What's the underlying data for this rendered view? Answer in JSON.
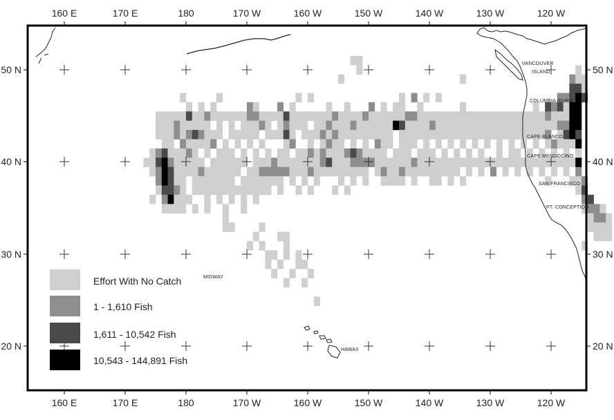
{
  "colors": {
    "no_catch": "#cfcfcf",
    "low": "#8e8e8e",
    "mid": "#4a4a4a",
    "high": "#000000",
    "frame": "#000000",
    "land": "#ffffff",
    "coast": "#222222"
  },
  "axes": {
    "top": [
      "160 E",
      "170 E",
      "180",
      "170 W",
      "160 W",
      "150 W",
      "140 W",
      "130 W",
      "120 W"
    ],
    "bottom": [
      "160 E",
      "170 E",
      "180",
      "170 W",
      "160 W",
      "150 W",
      "140 W",
      "130 W",
      "120 W"
    ],
    "left": [
      "50 N",
      "40 N",
      "30 N",
      "20 N"
    ],
    "right": [
      "50 N",
      "40 N",
      "30 N",
      "20 N"
    ]
  },
  "places": [
    {
      "id": "vancouver",
      "text": "VANCOUVER"
    },
    {
      "id": "island",
      "text": "ISLAND"
    },
    {
      "id": "columbia",
      "text": "COLUMBIA RIVER"
    },
    {
      "id": "blanco",
      "text": "CAPE BLANCO"
    },
    {
      "id": "mendocino",
      "text": "CAPE MENDOCINO"
    },
    {
      "id": "sanfrancisco",
      "text": "SAN FRANCISCO"
    },
    {
      "id": "conception",
      "text": "PT. CONCEPTION"
    },
    {
      "id": "midway",
      "text": "MIDWAY"
    },
    {
      "id": "hawaii",
      "text": "HAWAII"
    }
  ],
  "legend": [
    {
      "key": "no_catch",
      "label": "Effort With No Catch"
    },
    {
      "key": "low",
      "label": "1 - 1,610 Fish"
    },
    {
      "key": "mid",
      "label": "1,611 - 10,542 Fish"
    },
    {
      "key": "high",
      "label": "10,543 - 144,891 Fish"
    }
  ],
  "grid": {
    "lon0": 160,
    "lat0": 50,
    "deg_per_cell": 1,
    "rows": [
      {
        "lat": 51,
        "c": "1 48:1 49:1"
      },
      {
        "lat": 50,
        "c": "1 49:1 85:1"
      },
      {
        "lat": 49,
        "c": "1 46:1 66:1 84:2 85:1 86:1"
      },
      {
        "lat": 48,
        "c": "1 84:3 85:3 86:1"
      },
      {
        "lat": 47,
        "c": "1 20:1 26:1 39:1 41:1 56:1 58:2 60:1 62:1 82:2 83:2 84:3 85:4 86:3"
      },
      {
        "lat": 46,
        "c": "1 21:1 23:1 25:1 31:2 32:1 36:2 38:1 44:1 47:1 51:2 53:1 55:1 56:1 59:1 66:1 78:1 80:3 81:2 82:3 83:1 84:4 85:4"
      },
      {
        "lat": 45,
        "c": "1 16:9 17:9 18:9 19:9 20:9 21:3 22:1 23:1 24:2 25:1 26:1 27:1 28:1 29:1 30:1 31:2 32:2 33:1 34:1 35:1 36:1 37:3 38:1 39:1 40:1 41:1 42:1 43:1 44:1 45:2 46:1 47:1 48:1 49:1 50:2 51:1 52:1 53:1 54:1 55:1 56:1 57:2 58:2 59:1 60:1 61:1 62:1 63:1 64:1 65:1 66:1 67:1 68:1 69:1 70:1 71:1 72:1 73:1 74:1 75:1 76:1 77:1 78:1 79:1 80:2 81:1 82:1 83:1 84:4 85:4"
      },
      {
        "lat": 44,
        "c": "1 16:9 17:1 18:1 19:2 20:1 21:1 22:1 23:1 24:1 26:1 28:1 30:1 31:1 32:1 33:2 34:1 36:1 37:2 38:1 39:1 40:1 42:1 43:1 44:2 45:1 46:1 47:1 48:2 49:1 50:1 51:1 52:1 53:1 54:1 55:4 56:3 57:1 58:1 59:1 60:1 61:2 62:1 63:1 64:1 65:1 66:1 67:1 68:1 69:1 70:1 71:1 72:1 73:1 74:1 75:1 76:1 77:1 78:1 79:1 80:1 81:1 82:2 83:2 84:4 85:4"
      },
      {
        "lat": 43,
        "c": "1 16:1 17:1 18:1 19:2 20:1 21:2 22:3 23:2 24:1 25:1 26:1 28:1 29:1 30:1 31:1 32:1 34:1 35:1 36:1 37:3 38:1 40:1 41:1 42:1 43:2 44:1 45:2 46:1 47:1 48:1 49:1 50:1 51:1 52:1 53:1 54:1 56:1 57:1 58:1 59:1 60:1 61:1 62:1 63:1 64:1 65:1 66:1 67:1 68:1 69:1 70:1 71:1 72:1 73:1 74:1 75:1 76:1 77:1 78:1 79:1 80:2 82:1 83:3 84:4 85:3"
      },
      {
        "lat": 42,
        "c": "1 17:1 18:1 20:2 21:1 22:1 23:1 24:1 25:2 27:1 29:1 31:1 33:1 37:1 38:2 41:1 43:1 44:2 45:1 46:1 48:1 50:1 52:2 53:1 54:1 56:1 57:1 58:1 60:1 62:1 64:1 66:1 68:1 70:1 72:1 74:1 76:1 78:1 80:1 81:2 82:1 83:1 84:1 85:4"
      },
      {
        "lat": 41,
        "c": "1 15:1 16:2 17:3 18:1 19:1 20:1 21:2 22:1 24:1 26:1 27:1 28:1 30:1 32:1 34:1 36:1 37:1 39:1 40:1 41:2 42:1 43:2 44:1 45:1 46:1 47:2 48:3 49:2 50:1 51:1 52:1 53:1 55:1 56:1 57:1 59:1 60:1 61:1 63:1 65:1 67:1 69:1 72:1 74:1 75:1 77:1 79:1 81:1 83:1 85:1"
      },
      {
        "lat": 40,
        "c": "1 14:1 15:1 16:3 17:4 18:2 19:1 20:1 21:1 22:1 23:1 25:1 26:1 27:1 28:1 29:1 30:1 32:1 33:1 34:1 35:2 36:1 37:1 38:1 39:1 40:1 41:1 42:1 43:2 44:3 45:1 46:1 47:1 48:2 49:2 50:2 51:2 52:1 53:1 54:1 55:1 56:1 57:1 58:2 59:1 60:1 61:1 62:1 63:1 64:1 65:1 66:1 67:1 68:1 69:1 70:1 71:1 72:1 73:1 74:1 75:1 76:1 77:1 78:1 79:1 80:1 81:1 82:1 83:1 84:1 85:4"
      },
      {
        "lat": 39,
        "c": "1 15:1 16:2 17:4 18:3 19:1 20:1 21:1 22:1 23:2 24:1 25:1 26:1 27:1 28:1 29:1 31:1 32:1 33:2 34:2 35:2 36:2 37:2 38:1 39:1 40:1 41:2 42:1 43:1 44:1 45:1 46:1 47:1 48:1 49:1 50:1 52:1 53:2 54:1 55:1 56:2 57:1 58:1 59:1 60:1 61:1 62:1 63:1 64:1 65:1 67:1 69:1 71:2 73:1 75:1 77:1 79:1 81:1 83:1 85:2"
      },
      {
        "lat": 38,
        "c": "1 16:2 17:4 18:3 19:1 20:1 22:1 23:1 24:1 25:1 26:1 27:1 28:1 30:1 31:1 32:1 33:1 34:1 35:1 36:1 38:1 40:1 42:1 46:1 48:1 50:1 53:1 54:1 55:1 56:1 58:1 61:1 62:1 64:1 66:1 80:1 84:1 85:1 86:2"
      },
      {
        "lat": 37,
        "c": "1 16:1 17:3 18:3 19:2 20:1 22:1 23:1 24:1 25:1 26:1 27:1 28:1 29:1 30:1 31:1 32:1 33:1 34:1 36:1 39:1 41:1 45:1 47:1 85:1 86:3"
      },
      {
        "lat": 36,
        "c": "1 15:1 17:2 18:4 19:1 20:1 21:1 24:1 26:1 28:1 30:1 32:1 86:2 87:3"
      },
      {
        "lat": 35,
        "c": "1 17:1 18:1 19:1 20:1 22:1 24:1 27:1 30:1 86:1 87:2 88:2 89:1"
      },
      {
        "lat": 34,
        "c": "1 27:1 87:1 88:2 89:2 90:1"
      },
      {
        "lat": 33,
        "c": "1 27:1 28:1 33:1 87:1 88:1 89:1 90:1"
      },
      {
        "lat": 32,
        "c": "1 32:1 36:1 37:1 88:1 89:1 90:1"
      },
      {
        "lat": 31,
        "c": "1 31:1 33:1 37:1 86:1"
      },
      {
        "lat": 30,
        "c": "1 34:1 35:1 37:1 39:1"
      },
      {
        "lat": 29,
        "c": "1 34:1 36:1 39:1 40:1"
      },
      {
        "lat": 28,
        "c": "1 35:1 38:1 41:1"
      },
      {
        "lat": 27,
        "c": "1 37:1 40:1"
      },
      {
        "lat": 25,
        "c": "1 42:1"
      }
    ]
  }
}
